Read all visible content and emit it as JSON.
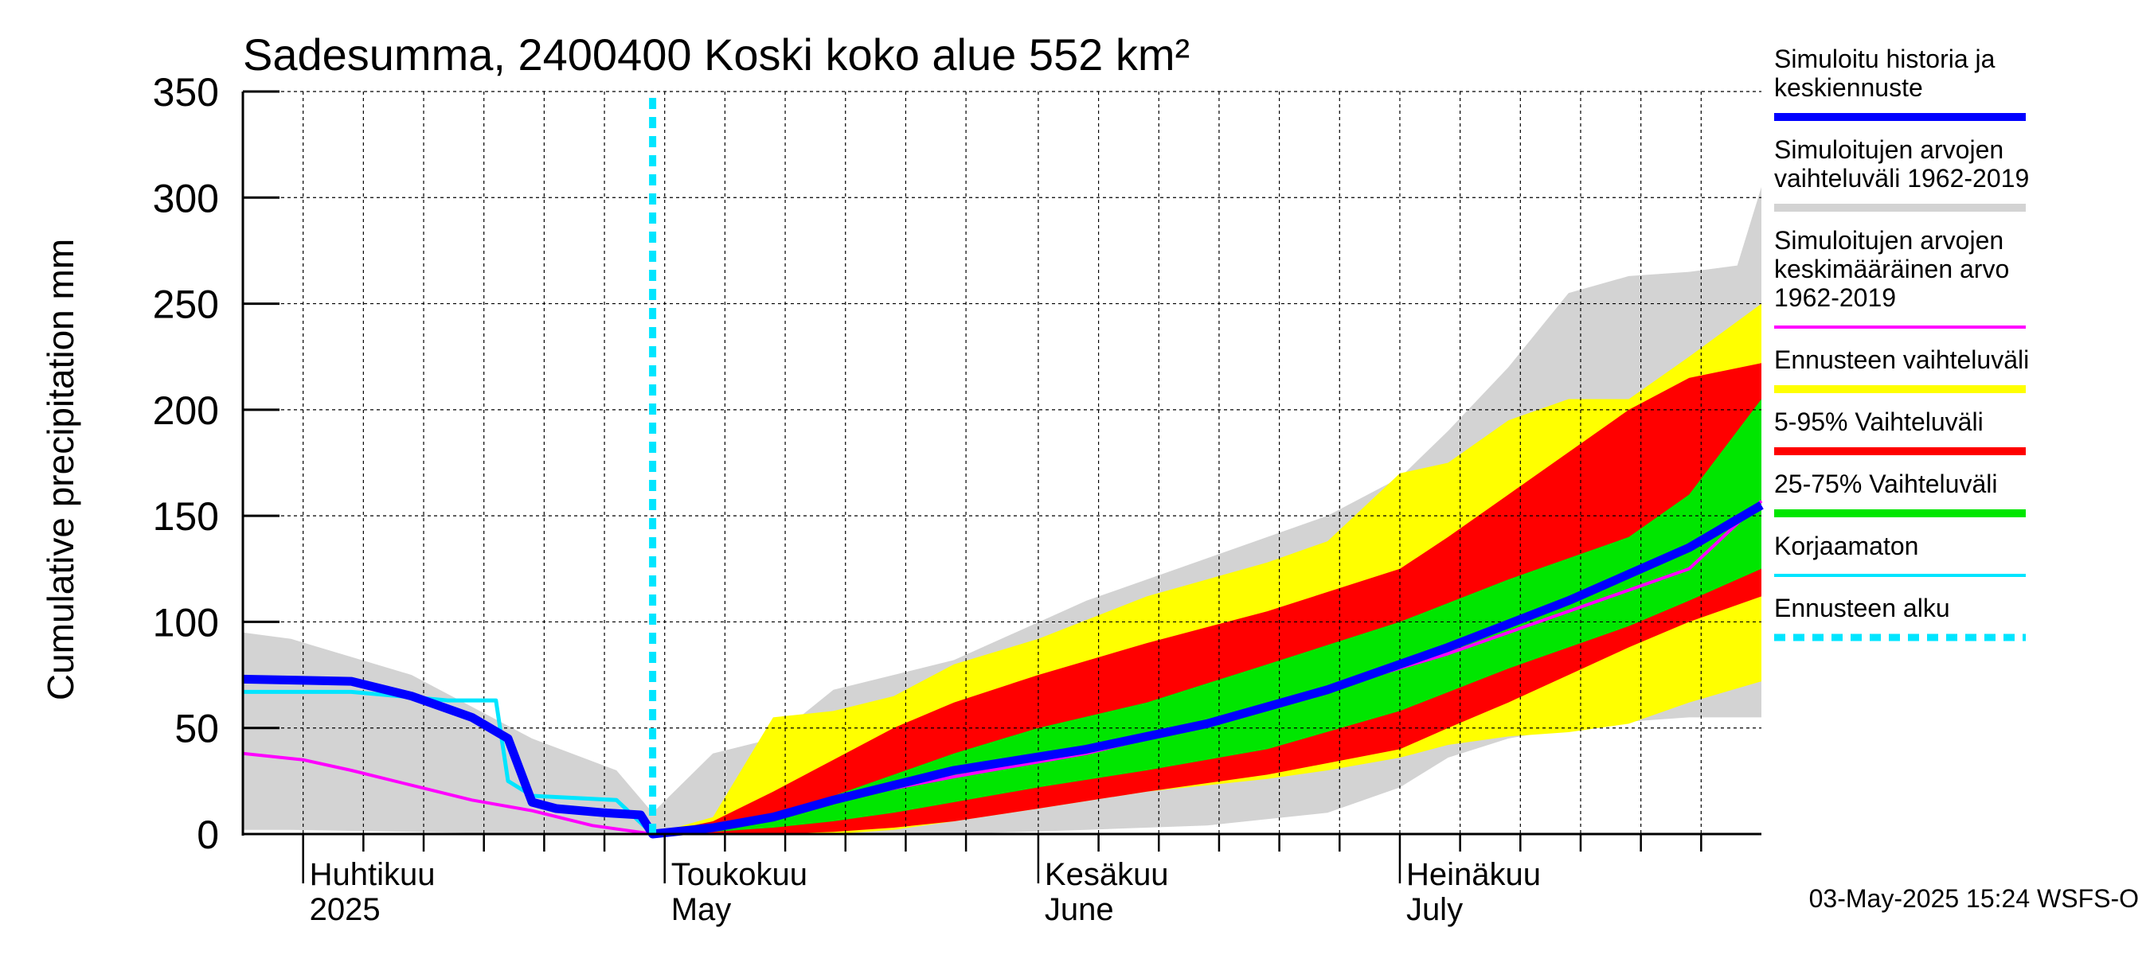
{
  "chart_data": {
    "type": "area",
    "title": "Sadesumma, 2400400 Koski koko alue 552 km²",
    "ylabel": "Cumulative precipitation   mm",
    "ylim": [
      0,
      350
    ],
    "yticks": [
      0,
      50,
      100,
      150,
      200,
      250,
      300,
      350
    ],
    "xlim": [
      "2025-03-27",
      "2025-07-31"
    ],
    "grid": true,
    "legend_position": "right",
    "month_labels": [
      {
        "fi": "Huhtikuu",
        "en": "2025",
        "date": "2025-04-01"
      },
      {
        "fi": "Toukokuu",
        "en": "May",
        "date": "2025-05-01"
      },
      {
        "fi": "Kesäkuu",
        "en": "June",
        "date": "2025-06-01"
      },
      {
        "fi": "Heinäkuu",
        "en": "July",
        "date": "2025-07-01"
      }
    ],
    "forecast_start": "2025-04-30",
    "series": [
      {
        "name": "Simuloitujen arvojen vaihteluväli 1962-2019",
        "kind": "band",
        "color": "#d3d3d3",
        "x": [
          "2025-03-27",
          "2025-03-31",
          "2025-04-10",
          "2025-04-20",
          "2025-04-27",
          "2025-04-30",
          "2025-05-05",
          "2025-05-10",
          "2025-05-15",
          "2025-05-25",
          "2025-06-05",
          "2025-06-15",
          "2025-06-25",
          "2025-07-01",
          "2025-07-05",
          "2025-07-10",
          "2025-07-15",
          "2025-07-20",
          "2025-07-25",
          "2025-07-29",
          "2025-07-31"
        ],
        "upper": [
          95,
          92,
          75,
          45,
          30,
          10,
          38,
          45,
          68,
          82,
          110,
          130,
          150,
          168,
          190,
          220,
          255,
          263,
          265,
          268,
          305
        ],
        "lower": [
          2,
          2,
          1,
          0,
          0,
          0,
          0,
          0,
          0,
          0,
          2,
          4,
          10,
          22,
          36,
          45,
          50,
          53,
          55,
          55,
          55
        ]
      },
      {
        "name": "Ennusteen vaihteluväli",
        "kind": "band",
        "color": "#ffff00",
        "x": [
          "2025-04-30",
          "2025-05-05",
          "2025-05-10",
          "2025-05-15",
          "2025-05-20",
          "2025-05-25",
          "2025-06-01",
          "2025-06-10",
          "2025-06-20",
          "2025-06-25",
          "2025-07-01",
          "2025-07-05",
          "2025-07-10",
          "2025-07-15",
          "2025-07-20",
          "2025-07-25",
          "2025-07-31"
        ],
        "upper": [
          0,
          8,
          55,
          58,
          65,
          80,
          92,
          112,
          128,
          138,
          170,
          175,
          195,
          205,
          205,
          225,
          250
        ],
        "lower": [
          0,
          0,
          0,
          0,
          2,
          6,
          12,
          20,
          26,
          30,
          36,
          42,
          46,
          48,
          52,
          62,
          72
        ]
      },
      {
        "name": "5-95% Vaihteluväli",
        "kind": "band",
        "color": "#ff0000",
        "x": [
          "2025-04-30",
          "2025-05-05",
          "2025-05-10",
          "2025-05-15",
          "2025-05-20",
          "2025-05-25",
          "2025-06-01",
          "2025-06-10",
          "2025-06-20",
          "2025-07-01",
          "2025-07-05",
          "2025-07-10",
          "2025-07-15",
          "2025-07-20",
          "2025-07-25",
          "2025-07-31"
        ],
        "upper": [
          0,
          6,
          20,
          35,
          50,
          62,
          75,
          90,
          105,
          125,
          140,
          160,
          180,
          200,
          215,
          222
        ],
        "lower": [
          0,
          0,
          0,
          1,
          3,
          6,
          12,
          20,
          28,
          40,
          50,
          62,
          75,
          88,
          100,
          112
        ]
      },
      {
        "name": "25-75% Vaihteluväli",
        "kind": "band",
        "color": "#00e600",
        "x": [
          "2025-04-30",
          "2025-05-05",
          "2025-05-10",
          "2025-05-15",
          "2025-05-20",
          "2025-05-25",
          "2025-06-01",
          "2025-06-10",
          "2025-06-20",
          "2025-07-01",
          "2025-07-10",
          "2025-07-20",
          "2025-07-25",
          "2025-07-31"
        ],
        "upper": [
          0,
          3,
          10,
          18,
          28,
          38,
          50,
          62,
          80,
          100,
          120,
          140,
          160,
          205
        ],
        "lower": [
          0,
          1,
          3,
          6,
          10,
          15,
          22,
          30,
          40,
          58,
          78,
          98,
          110,
          125
        ]
      },
      {
        "name": "Simuloitujen arvojen keskimääräinen arvo 1962-2019",
        "kind": "line",
        "color": "#ff00ff",
        "x": [
          "2025-03-27",
          "2025-04-01",
          "2025-04-05",
          "2025-04-10",
          "2025-04-15",
          "2025-04-20",
          "2025-04-25",
          "2025-04-30",
          "2025-05-05",
          "2025-05-10",
          "2025-05-15",
          "2025-05-25",
          "2025-06-05",
          "2025-06-15",
          "2025-06-25",
          "2025-07-05",
          "2025-07-15",
          "2025-07-25",
          "2025-07-31"
        ],
        "values": [
          38,
          35,
          30,
          23,
          16,
          11,
          4,
          0,
          3,
          9,
          16,
          27,
          38,
          52,
          68,
          85,
          105,
          125,
          157
        ]
      },
      {
        "name": "Korjaamaton",
        "kind": "line",
        "color": "#00e5ff",
        "x": [
          "2025-03-27",
          "2025-04-05",
          "2025-04-13",
          "2025-04-17",
          "2025-04-18",
          "2025-04-20",
          "2025-04-27",
          "2025-04-30"
        ],
        "values": [
          67,
          67,
          63,
          63,
          25,
          18,
          16,
          0
        ]
      },
      {
        "name": "Simuloitu historia ja keskiennuste",
        "kind": "line",
        "color": "#0000ff",
        "x": [
          "2025-03-27",
          "2025-04-05",
          "2025-04-10",
          "2025-04-15",
          "2025-04-18",
          "2025-04-20",
          "2025-04-22",
          "2025-04-26",
          "2025-04-29",
          "2025-04-30",
          "2025-05-05",
          "2025-05-10",
          "2025-05-15",
          "2025-05-25",
          "2025-06-05",
          "2025-06-15",
          "2025-06-25",
          "2025-07-05",
          "2025-07-15",
          "2025-07-25",
          "2025-07-31"
        ],
        "values": [
          73,
          72,
          65,
          55,
          45,
          15,
          12,
          10,
          9,
          0,
          3,
          8,
          16,
          30,
          40,
          52,
          68,
          88,
          110,
          135,
          155
        ]
      }
    ]
  },
  "legend": [
    {
      "lines": [
        "Simuloitu historia ja",
        "keskiennuste"
      ],
      "color": "#0000ff",
      "style": "thick"
    },
    {
      "lines": [
        "Simuloitujen arvojen",
        "vaihteluväli 1962-2019"
      ],
      "color": "#d3d3d3",
      "style": "thick"
    },
    {
      "lines": [
        "Simuloitujen arvojen",
        "keskimääräinen arvo",
        "   1962-2019"
      ],
      "color": "#ff00ff",
      "style": "thin"
    },
    {
      "lines": [
        "Ennusteen vaihteluväli"
      ],
      "color": "#ffff00",
      "style": "thick"
    },
    {
      "lines": [
        "5-95% Vaihteluväli"
      ],
      "color": "#ff0000",
      "style": "thick"
    },
    {
      "lines": [
        "25-75% Vaihteluväli"
      ],
      "color": "#00e600",
      "style": "thick"
    },
    {
      "lines": [
        "Korjaamaton"
      ],
      "color": "#00e5ff",
      "style": "thin"
    },
    {
      "lines": [
        "Ennusteen alku"
      ],
      "color": "#00e5ff",
      "style": "dotted"
    }
  ],
  "footer": "03-May-2025 15:24 WSFS-O"
}
